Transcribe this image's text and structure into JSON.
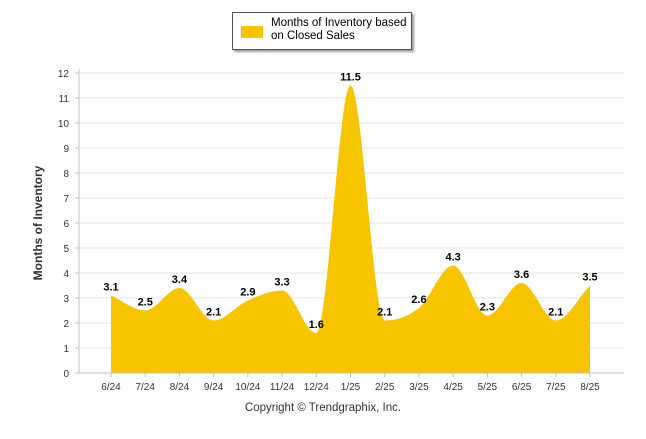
{
  "chart_data": {
    "type": "area",
    "title": "",
    "xlabel": "",
    "ylabel": "Months of Inventory",
    "categories": [
      "6/24",
      "7/24",
      "8/24",
      "9/24",
      "10/24",
      "11/24",
      "12/24",
      "1/25",
      "2/25",
      "3/25",
      "4/25",
      "5/25",
      "6/25",
      "7/25",
      "8/25"
    ],
    "series": [
      {
        "name": "Months of Inventory based on Closed Sales",
        "values": [
          3.1,
          2.5,
          3.4,
          2.1,
          2.9,
          3.3,
          1.6,
          11.5,
          2.1,
          2.6,
          4.3,
          2.3,
          3.6,
          2.1,
          3.5
        ],
        "color": "#F7C400"
      }
    ],
    "ylim": [
      0,
      12
    ],
    "yticks": [
      0,
      1,
      2,
      3,
      4,
      5,
      6,
      7,
      8,
      9,
      10,
      11,
      12
    ],
    "grid": true,
    "legend_position": "top-center",
    "data_labels": [
      "3.1",
      "2.5",
      "3.4",
      "2.1",
      "2.9",
      "3.3",
      "1.6",
      "11.5",
      "2.1",
      "2.6",
      "4.3",
      "2.3",
      "3.6",
      "2.1",
      "3.5"
    ]
  },
  "legend": {
    "label": "Months of Inventory based on Closed Sales"
  },
  "footer": {
    "copyright": "Copyright © Trendgraphix, Inc."
  }
}
